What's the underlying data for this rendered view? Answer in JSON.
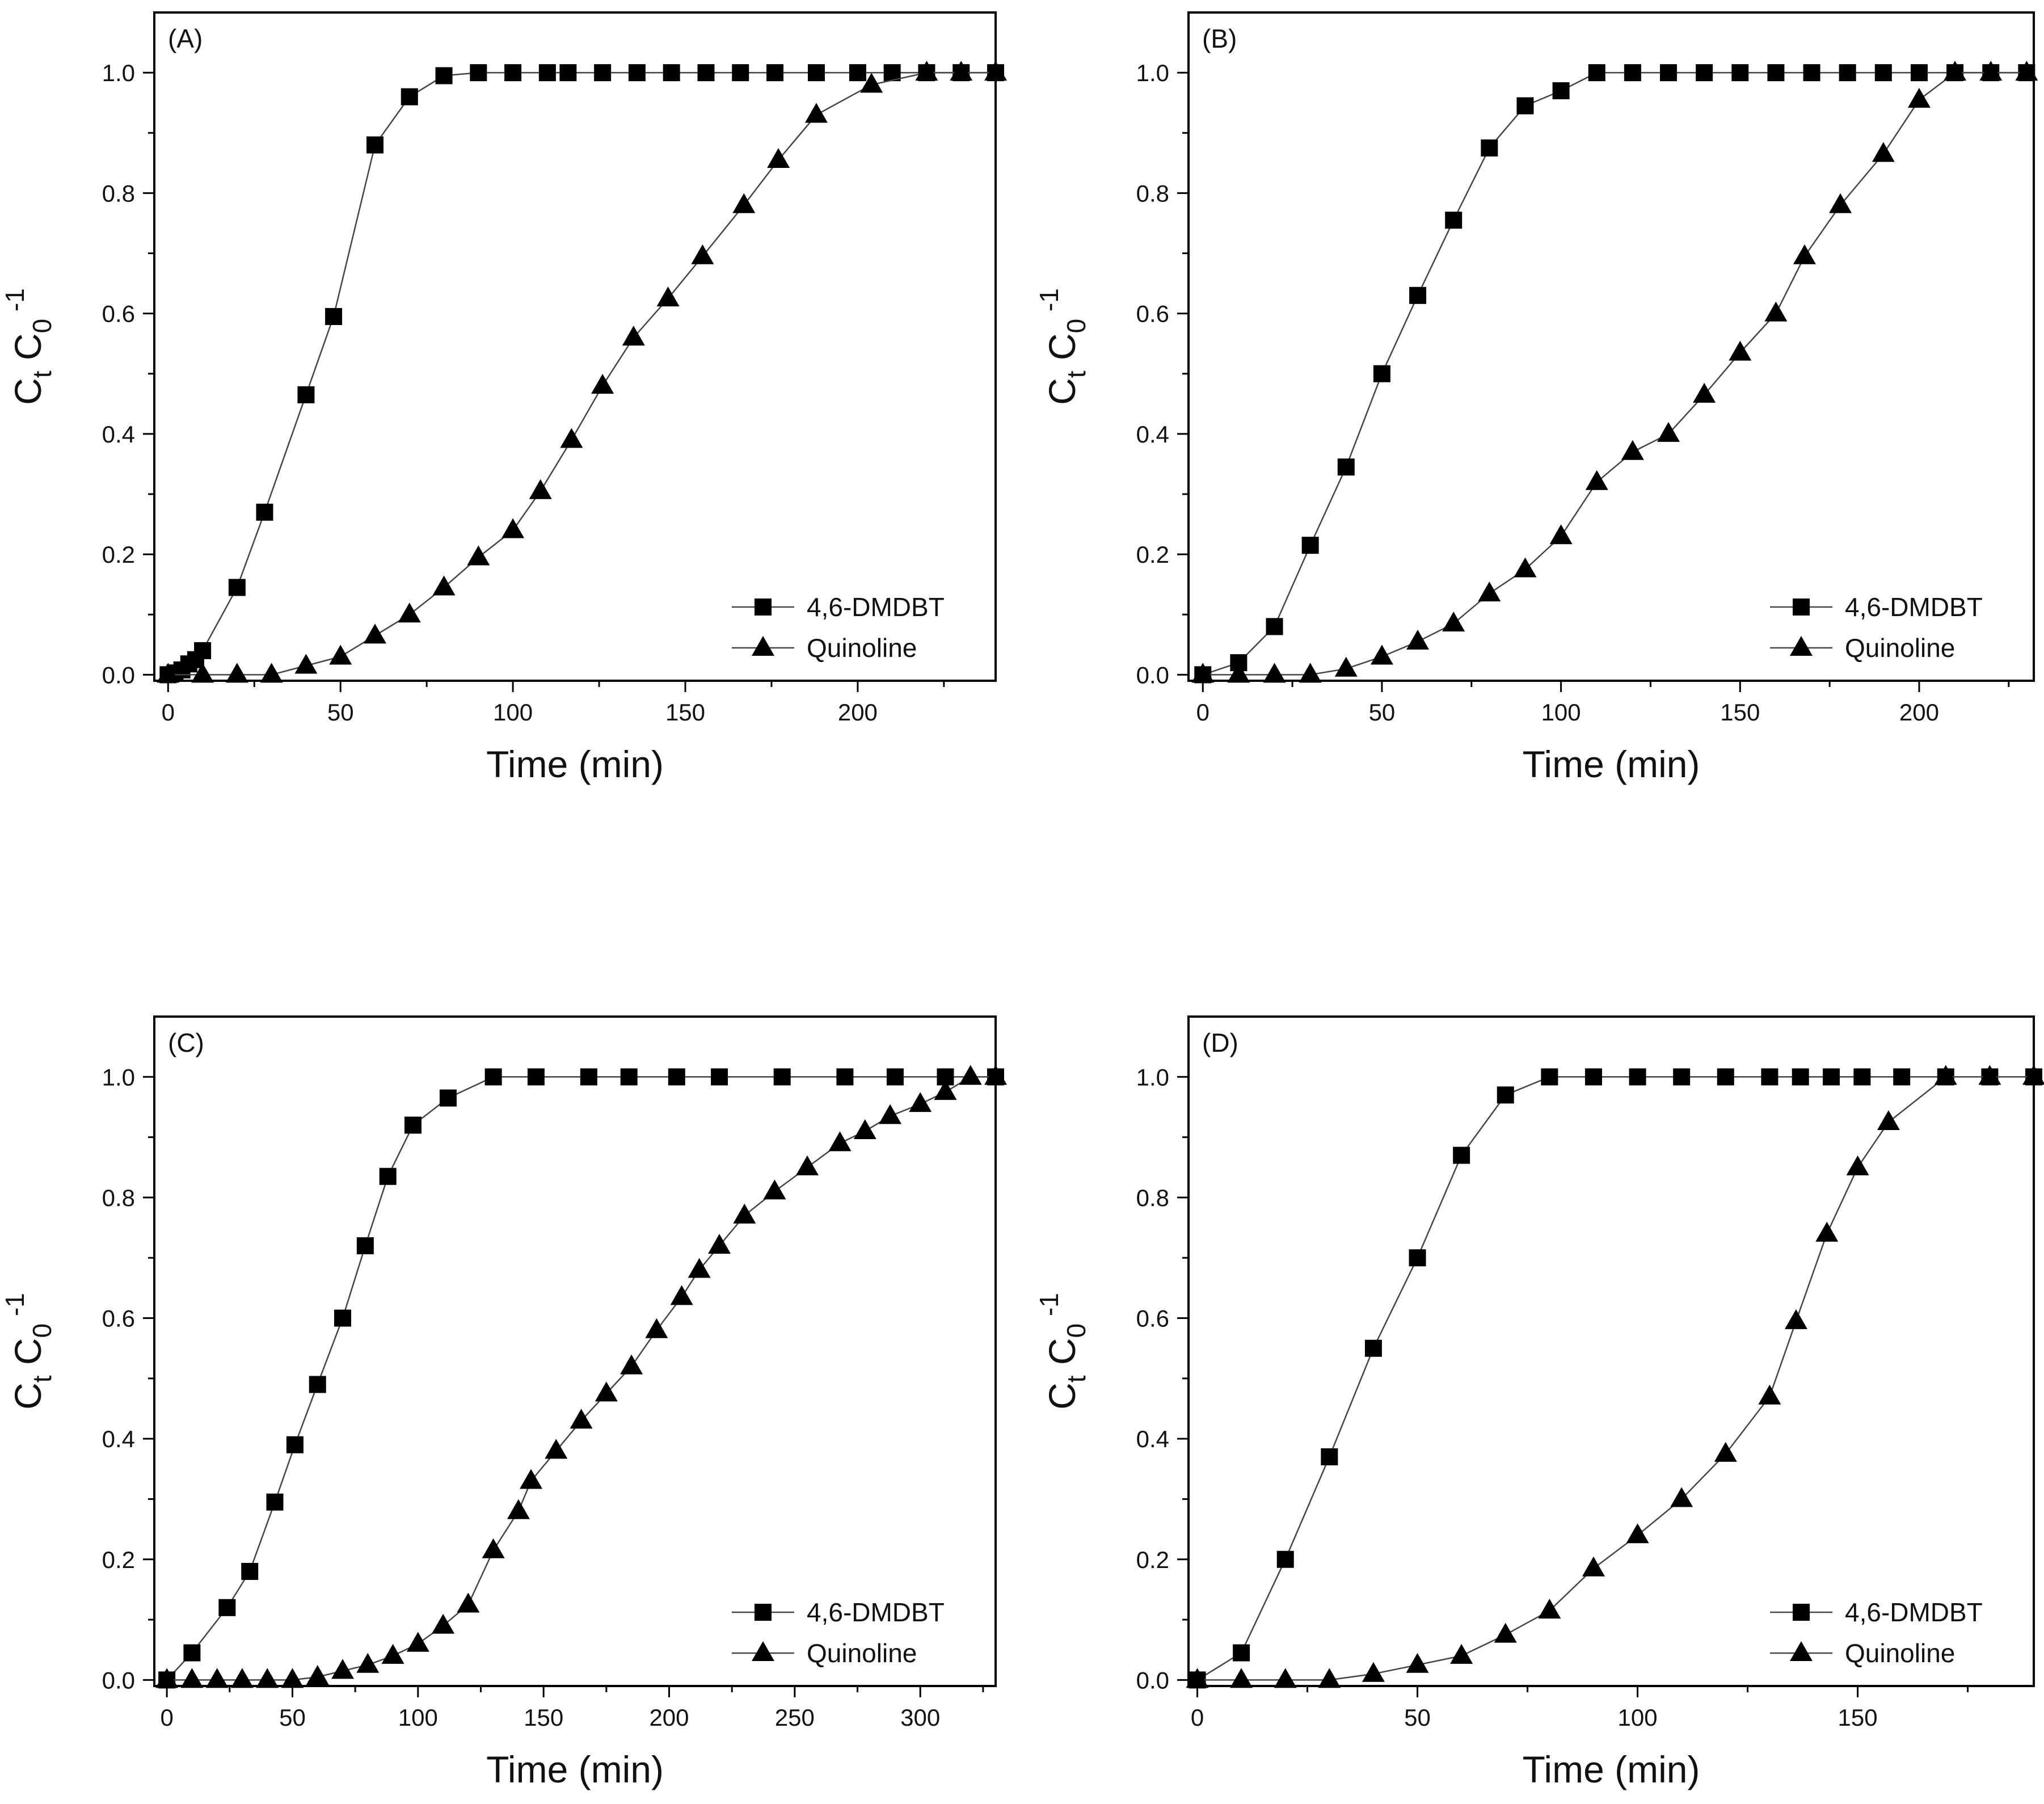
{
  "chart_data": [
    {
      "type": "line",
      "panel_label": "(A)",
      "xlabel": "Time (min)",
      "ylabel": {
        "main": "C",
        "sub1": "t",
        "mid": " C",
        "sub2": "0",
        "sup": "-1"
      },
      "xlim": [
        -4,
        240
      ],
      "ylim": [
        -0.01,
        1.1
      ],
      "xticks": [
        0,
        50,
        100,
        150,
        200
      ],
      "yticks": [
        0.0,
        0.2,
        0.4,
        0.6,
        0.8,
        1.0
      ],
      "yticklabels": [
        "0.0",
        "0.2",
        "0.4",
        "0.6",
        "0.8",
        "1.0"
      ],
      "legend_position": "bottom-right",
      "series": [
        {
          "name": "4,6-DMDBT",
          "marker": "square",
          "x": [
            0,
            2,
            4,
            6,
            8,
            10,
            20,
            28,
            40,
            48,
            60,
            70,
            80,
            90,
            100,
            110,
            116,
            126,
            136,
            146,
            156,
            166,
            176,
            188,
            200,
            210,
            220,
            230,
            240
          ],
          "y": [
            0,
            0.003,
            0.008,
            0.018,
            0.025,
            0.04,
            0.145,
            0.27,
            0.465,
            0.595,
            0.88,
            0.96,
            0.995,
            1,
            1,
            1,
            1,
            1,
            1,
            1,
            1,
            1,
            1,
            1,
            1,
            1,
            1,
            1,
            1
          ]
        },
        {
          "name": "Quinoline",
          "marker": "triangle",
          "x": [
            0,
            10,
            20,
            30,
            40,
            50,
            60,
            70,
            80,
            90,
            100,
            108,
            117,
            126,
            135,
            145,
            155,
            167,
            177,
            188,
            204,
            220,
            230,
            240
          ],
          "y": [
            0,
            0,
            0,
            0,
            0.015,
            0.03,
            0.065,
            0.1,
            0.145,
            0.195,
            0.24,
            0.305,
            0.39,
            0.48,
            0.56,
            0.625,
            0.695,
            0.78,
            0.855,
            0.93,
            0.98,
            1,
            1,
            1
          ]
        }
      ]
    },
    {
      "type": "line",
      "panel_label": "(B)",
      "xlabel": "Time (min)",
      "ylabel": {
        "main": "C",
        "sub1": "t",
        "mid": " C",
        "sub2": "0",
        "sup": "-1"
      },
      "xlim": [
        -4,
        232
      ],
      "ylim": [
        -0.01,
        1.1
      ],
      "xticks": [
        0,
        50,
        100,
        150,
        200
      ],
      "yticks": [
        0.0,
        0.2,
        0.4,
        0.6,
        0.8,
        1.0
      ],
      "yticklabels": [
        "0.0",
        "0.2",
        "0.4",
        "0.6",
        "0.8",
        "1.0"
      ],
      "legend_position": "bottom-right",
      "series": [
        {
          "name": "4,6-DMDBT",
          "marker": "square",
          "x": [
            0,
            10,
            20,
            30,
            40,
            50,
            60,
            70,
            80,
            90,
            100,
            110,
            120,
            130,
            140,
            150,
            160,
            170,
            180,
            190,
            200,
            210,
            220,
            230
          ],
          "y": [
            0,
            0.02,
            0.08,
            0.215,
            0.345,
            0.5,
            0.63,
            0.755,
            0.875,
            0.945,
            0.97,
            1,
            1,
            1,
            1,
            1,
            1,
            1,
            1,
            1,
            1,
            1,
            1,
            1
          ]
        },
        {
          "name": "Quinoline",
          "marker": "triangle",
          "x": [
            0,
            10,
            20,
            30,
            40,
            50,
            60,
            70,
            80,
            90,
            100,
            110,
            120,
            130,
            140,
            150,
            160,
            168,
            178,
            190,
            200,
            210,
            220,
            230
          ],
          "y": [
            0,
            0,
            0,
            0,
            0.01,
            0.03,
            0.055,
            0.085,
            0.135,
            0.175,
            0.23,
            0.32,
            0.37,
            0.4,
            0.465,
            0.535,
            0.6,
            0.695,
            0.78,
            0.865,
            0.955,
            1,
            1,
            1
          ]
        }
      ]
    },
    {
      "type": "line",
      "panel_label": "(C)",
      "xlabel": "Time (min)",
      "ylabel": {
        "main": "C",
        "sub1": "t",
        "mid": " C",
        "sub2": "0",
        "sup": "-1"
      },
      "xlim": [
        -5,
        330
      ],
      "ylim": [
        -0.01,
        1.1
      ],
      "xticks": [
        0,
        50,
        100,
        150,
        200,
        250,
        300
      ],
      "yticks": [
        0.0,
        0.2,
        0.4,
        0.6,
        0.8,
        1.0
      ],
      "yticklabels": [
        "0.0",
        "0.2",
        "0.4",
        "0.6",
        "0.8",
        "1.0"
      ],
      "legend_position": "bottom-right",
      "series": [
        {
          "name": "4,6-DMDBT",
          "marker": "square",
          "x": [
            0,
            10,
            24,
            33,
            43,
            51,
            60,
            70,
            79,
            88,
            98,
            112,
            130,
            147,
            168,
            184,
            203,
            220,
            245,
            270,
            290,
            310,
            330
          ],
          "y": [
            0,
            0.045,
            0.12,
            0.18,
            0.295,
            0.39,
            0.49,
            0.6,
            0.72,
            0.835,
            0.92,
            0.965,
            1,
            1,
            1,
            1,
            1,
            1,
            1,
            1,
            1,
            1,
            1
          ]
        },
        {
          "name": "Quinoline",
          "marker": "triangle",
          "x": [
            0,
            10,
            20,
            30,
            40,
            50,
            60,
            70,
            80,
            90,
            100,
            110,
            120,
            130,
            140,
            145,
            155,
            165,
            175,
            185,
            195,
            205,
            212,
            220,
            230,
            242,
            255,
            268,
            278,
            288,
            300,
            310,
            320,
            330
          ],
          "y": [
            0,
            0,
            0,
            0,
            0,
            0,
            0.005,
            0.015,
            0.025,
            0.04,
            0.06,
            0.09,
            0.125,
            0.215,
            0.28,
            0.33,
            0.38,
            0.43,
            0.475,
            0.52,
            0.58,
            0.635,
            0.68,
            0.72,
            0.77,
            0.81,
            0.85,
            0.89,
            0.91,
            0.935,
            0.955,
            0.975,
            1,
            1
          ]
        }
      ]
    },
    {
      "type": "line",
      "panel_label": "(D)",
      "xlabel": "Time (min)",
      "ylabel": {
        "main": "C",
        "sub1": "t",
        "mid": " C",
        "sub2": "0",
        "sup": "-1"
      },
      "xlim": [
        -2,
        190
      ],
      "ylim": [
        -0.01,
        1.1
      ],
      "xticks": [
        0,
        50,
        100,
        150
      ],
      "yticks": [
        0.0,
        0.2,
        0.4,
        0.6,
        0.8,
        1.0
      ],
      "yticklabels": [
        "0.0",
        "0.2",
        "0.4",
        "0.6",
        "0.8",
        "1.0"
      ],
      "legend_position": "bottom-right",
      "series": [
        {
          "name": "4,6-DMDBT",
          "marker": "square",
          "x": [
            0,
            10,
            20,
            30,
            40,
            50,
            60,
            70,
            80,
            90,
            100,
            110,
            120,
            130,
            137,
            144,
            151,
            160,
            170,
            180,
            190
          ],
          "y": [
            0,
            0.045,
            0.2,
            0.37,
            0.55,
            0.7,
            0.87,
            0.97,
            1,
            1,
            1,
            1,
            1,
            1,
            1,
            1,
            1,
            1,
            1,
            1,
            1
          ]
        },
        {
          "name": "Quinoline",
          "marker": "triangle",
          "x": [
            0,
            10,
            20,
            30,
            40,
            50,
            60,
            70,
            80,
            90,
            100,
            110,
            120,
            130,
            136,
            143,
            150,
            157,
            170,
            180,
            190
          ],
          "y": [
            0,
            0,
            0,
            0,
            0.01,
            0.025,
            0.04,
            0.075,
            0.115,
            0.185,
            0.24,
            0.3,
            0.375,
            0.47,
            0.595,
            0.74,
            0.85,
            0.925,
            1,
            1,
            1
          ]
        }
      ]
    }
  ]
}
